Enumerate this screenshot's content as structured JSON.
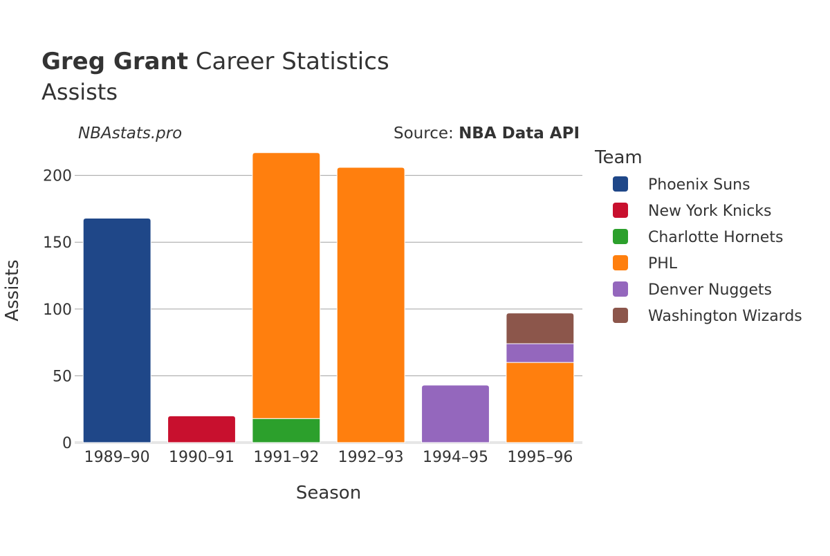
{
  "title": {
    "name": "Greg Grant",
    "rest": " Career Statistics",
    "subtitle": "Assists"
  },
  "watermark": "NBAstats.pro",
  "source": {
    "prefix": "Source: ",
    "name": "NBA Data API"
  },
  "legend": {
    "title": "Team"
  },
  "chart_data": {
    "type": "bar",
    "stacked": true,
    "title": "Greg Grant Career Statistics",
    "subtitle": "Assists",
    "xlabel": "Season",
    "ylabel": "Assists",
    "ylim": [
      0,
      220
    ],
    "yticks": [
      0,
      50,
      100,
      150,
      200
    ],
    "grid": true,
    "legend_position": "right",
    "categories": [
      "1989–90",
      "1990–91",
      "1991–92",
      "1992–93",
      "1994–95",
      "1995–96"
    ],
    "series": [
      {
        "name": "Phoenix Suns",
        "color": "#1f4788",
        "values": [
          168,
          0,
          0,
          0,
          0,
          0
        ]
      },
      {
        "name": "New York Knicks",
        "color": "#c8102e",
        "values": [
          0,
          20,
          0,
          0,
          0,
          0
        ]
      },
      {
        "name": "Charlotte Hornets",
        "color": "#2ca02c",
        "values": [
          0,
          0,
          18,
          0,
          0,
          0
        ]
      },
      {
        "name": "PHL",
        "color": "#ff7f0e",
        "values": [
          0,
          0,
          199,
          206,
          0,
          60
        ]
      },
      {
        "name": "Denver Nuggets",
        "color": "#9467bd",
        "values": [
          0,
          0,
          0,
          0,
          43,
          14
        ]
      },
      {
        "name": "Washington Wizards",
        "color": "#8c564b",
        "values": [
          0,
          0,
          0,
          0,
          0,
          23
        ]
      }
    ]
  }
}
